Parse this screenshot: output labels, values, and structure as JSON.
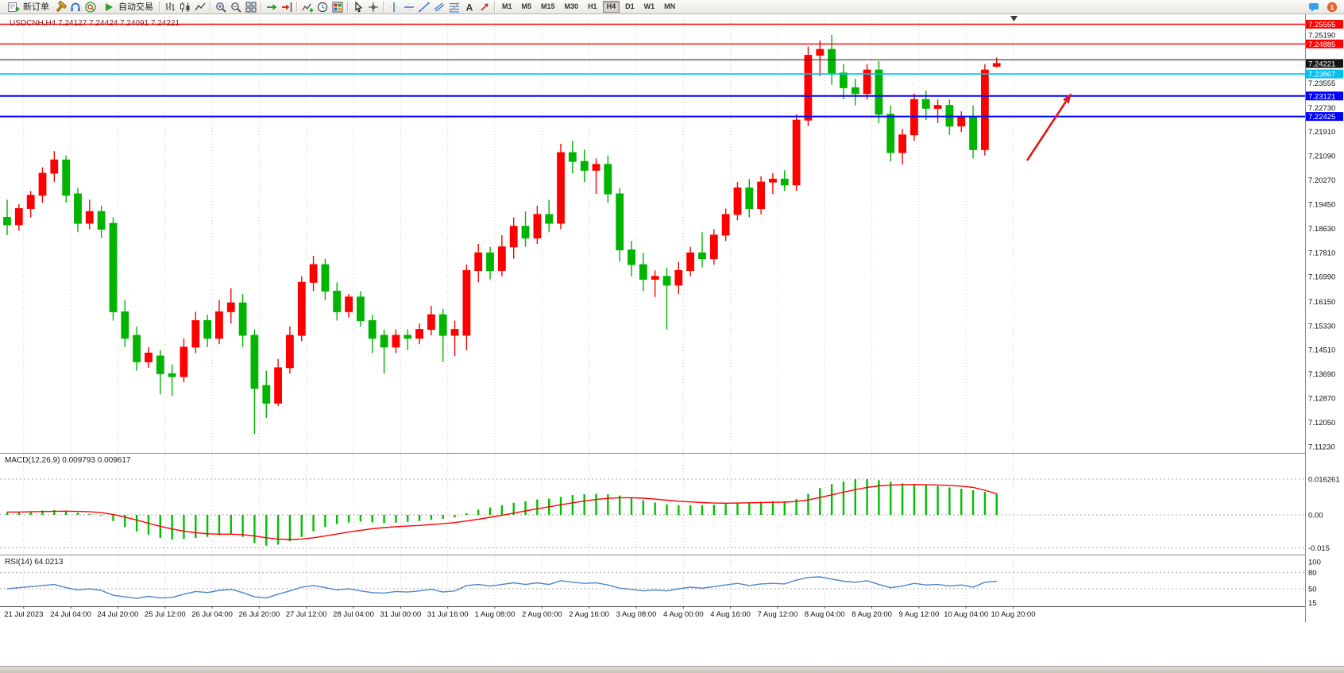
{
  "toolbar": {
    "new_order_label": "新订单",
    "auto_trading_label": "自动交易",
    "sections": [
      {
        "type": "button",
        "name": "new-order-button",
        "icon": "new-order-icon",
        "bind": "toolbar.new_order_label"
      },
      {
        "type": "icons",
        "items": [
          "hammer-icon",
          "headset-icon",
          "community-icon"
        ]
      },
      {
        "type": "button",
        "name": "auto-trading-button",
        "icon": "autotrade-play-icon",
        "bind": "toolbar.auto_trading_label"
      },
      {
        "type": "sep"
      },
      {
        "type": "icons",
        "items": [
          "bar-chart-icon",
          "candlestick-chart-icon",
          "line-chart-icon"
        ]
      },
      {
        "type": "sep"
      },
      {
        "type": "icons",
        "items": [
          "zoom-in-icon",
          "zoom-out-icon",
          "tile-windows-icon"
        ]
      },
      {
        "type": "sep"
      },
      {
        "type": "icons",
        "items": [
          "auto-scroll-icon",
          "chart-shift-icon"
        ]
      },
      {
        "type": "sep"
      },
      {
        "type": "icons",
        "items": [
          "indicators-icon",
          "periods-icon",
          "templates-icon"
        ]
      },
      {
        "type": "sep"
      },
      {
        "type": "icons",
        "items": [
          "cursor-icon",
          "crosshair-icon"
        ]
      },
      {
        "type": "sep"
      },
      {
        "type": "icons",
        "items": [
          "vertical-line-icon",
          "horizontal-line-icon",
          "trendline-icon",
          "channel-icon",
          "fibonacci-icon",
          "text-icon",
          "arrows-icon"
        ]
      },
      {
        "type": "sep"
      },
      {
        "type": "timeframes"
      }
    ],
    "timeframes": [
      "M1",
      "M5",
      "M15",
      "M30",
      "H1",
      "H4",
      "D1",
      "W1",
      "MN"
    ],
    "active_timeframe": "H4",
    "right_icons": [
      "chat-icon",
      "notification-icon"
    ]
  },
  "chart_data": {
    "type": "candlestick",
    "symbol": "USDCNH",
    "timeframe": "H4",
    "title": "USDCNH,H4 7.24127 7.24424 7.24091 7.24221",
    "last_candle_ohlc": {
      "open": 7.24127,
      "high": 7.24424,
      "low": 7.24091,
      "close": 7.24221
    },
    "current_price": "7.24221",
    "colors": {
      "up": "#FF0000",
      "down": "#00B400",
      "macd_hist": "#00C000",
      "macd_signal": "#FF0000",
      "rsi_line": "#4C86C8",
      "grid": "#C9C9C9",
      "background": "#FFFFFF",
      "red_level": "#FF0000",
      "cyan_level": "#00BFEF",
      "blue_level": "#0000FF",
      "black_level": "#2F2F2F"
    },
    "y_grid_labels": [
      "7.25190",
      "7.23555",
      "7.22730",
      "7.21910",
      "7.21090",
      "7.20270",
      "7.19450",
      "7.18630",
      "7.17810",
      "7.16990",
      "7.16150",
      "7.15330",
      "7.14510",
      "7.13690",
      "7.12870",
      "7.12050",
      "7.11230"
    ],
    "price_tags": [
      {
        "text": "7.25555",
        "price": 7.25555,
        "bg": "#FF0000",
        "fg": "#FFFFFF"
      },
      {
        "text": "7.24885",
        "price": 7.24885,
        "bg": "#FF0000",
        "fg": "#FFFFFF"
      },
      {
        "text": "7.24221",
        "price": 7.24221,
        "bg": "#141414",
        "fg": "#FFFFFF"
      },
      {
        "text": "7.23867",
        "price": 7.23867,
        "bg": "#00BFEF",
        "fg": "#FFFFFF"
      },
      {
        "text": "7.23121",
        "price": 7.23121,
        "bg": "#0000FF",
        "fg": "#FFFFFF"
      },
      {
        "text": "7.22425",
        "price": 7.22425,
        "bg": "#0000FF",
        "fg": "#FFFFFF"
      }
    ],
    "hlines": [
      {
        "price": 7.25555,
        "color": "#FF0000",
        "width": 1.4
      },
      {
        "price": 7.24885,
        "color": "#FF0000",
        "width": 1.4
      },
      {
        "price": 7.2435,
        "color": "#2F2F2F",
        "width": 1.2
      },
      {
        "price": 7.23867,
        "color": "#00BFEF",
        "width": 1.6
      },
      {
        "price": 7.23121,
        "color": "#0000FF",
        "width": 2
      },
      {
        "price": 7.22425,
        "color": "#0000FF",
        "width": 2
      }
    ],
    "x_labels": [
      "21 Jul 2023",
      "24 Jul 04:00",
      "24 Jul 20:00",
      "25 Jul 12:00",
      "26 Jul 04:00",
      "26 Jul 20:00",
      "27 Jul 12:00",
      "28 Jul 04:00",
      "31 Jul 00:00",
      "31 Jul 16:00",
      "1 Aug 08:00",
      "2 Aug 00:00",
      "2 Aug 16:00",
      "3 Aug 08:00",
      "4 Aug 00:00",
      "4 Aug 16:00",
      "7 Aug 12:00",
      "8 Aug 04:00",
      "8 Aug 20:00",
      "9 Aug 12:00",
      "10 Aug 04:00",
      "10 Aug 20:00"
    ],
    "candles": [
      [
        7.19,
        7.196,
        7.184,
        7.1875
      ],
      [
        7.1875,
        7.1945,
        7.1855,
        7.193
      ],
      [
        7.193,
        7.199,
        7.19,
        7.1975
      ],
      [
        7.1975,
        7.207,
        7.195,
        7.205
      ],
      [
        7.205,
        7.2125,
        7.202,
        7.2095
      ],
      [
        7.2095,
        7.211,
        7.195,
        7.1975
      ],
      [
        7.198,
        7.2,
        7.185,
        7.188
      ],
      [
        7.188,
        7.196,
        7.186,
        7.192
      ],
      [
        7.192,
        7.194,
        7.183,
        7.186
      ],
      [
        7.188,
        7.19,
        7.155,
        7.158
      ],
      [
        7.158,
        7.162,
        7.146,
        7.149
      ],
      [
        7.15,
        7.153,
        7.138,
        7.141
      ],
      [
        7.141,
        7.146,
        7.139,
        7.144
      ],
      [
        7.143,
        7.145,
        7.13,
        7.137
      ],
      [
        7.137,
        7.14,
        7.1295,
        7.136
      ],
      [
        7.136,
        7.149,
        7.134,
        7.146
      ],
      [
        7.146,
        7.158,
        7.144,
        7.155
      ],
      [
        7.155,
        7.157,
        7.146,
        7.149
      ],
      [
        7.149,
        7.162,
        7.147,
        7.158
      ],
      [
        7.158,
        7.166,
        7.154,
        7.161
      ],
      [
        7.161,
        7.164,
        7.146,
        7.15
      ],
      [
        7.15,
        7.152,
        7.1165,
        7.132
      ],
      [
        7.133,
        7.138,
        7.122,
        7.127
      ],
      [
        7.127,
        7.142,
        7.126,
        7.139
      ],
      [
        7.139,
        7.153,
        7.137,
        7.15
      ],
      [
        7.15,
        7.17,
        7.148,
        7.168
      ],
      [
        7.168,
        7.177,
        7.165,
        7.174
      ],
      [
        7.174,
        7.176,
        7.162,
        7.165
      ],
      [
        7.165,
        7.168,
        7.155,
        7.158
      ],
      [
        7.158,
        7.164,
        7.156,
        7.163
      ],
      [
        7.163,
        7.165,
        7.153,
        7.155
      ],
      [
        7.155,
        7.157,
        7.144,
        7.149
      ],
      [
        7.15,
        7.152,
        7.137,
        7.146
      ],
      [
        7.146,
        7.152,
        7.144,
        7.15
      ],
      [
        7.15,
        7.152,
        7.145,
        7.149
      ],
      [
        7.149,
        7.154,
        7.147,
        7.152
      ],
      [
        7.152,
        7.16,
        7.15,
        7.157
      ],
      [
        7.157,
        7.159,
        7.141,
        7.15
      ],
      [
        7.15,
        7.155,
        7.143,
        7.152
      ],
      [
        7.15,
        7.174,
        7.145,
        7.172
      ],
      [
        7.172,
        7.181,
        7.168,
        7.178
      ],
      [
        7.178,
        7.18,
        7.169,
        7.172
      ],
      [
        7.172,
        7.184,
        7.17,
        7.18
      ],
      [
        7.18,
        7.19,
        7.176,
        7.187
      ],
      [
        7.187,
        7.192,
        7.18,
        7.183
      ],
      [
        7.183,
        7.194,
        7.181,
        7.191
      ],
      [
        7.191,
        7.196,
        7.185,
        7.188
      ],
      [
        7.188,
        7.215,
        7.186,
        7.212
      ],
      [
        7.212,
        7.216,
        7.205,
        7.209
      ],
      [
        7.209,
        7.213,
        7.202,
        7.206
      ],
      [
        7.206,
        7.21,
        7.198,
        7.208
      ],
      [
        7.208,
        7.211,
        7.195,
        7.198
      ],
      [
        7.198,
        7.2,
        7.175,
        7.179
      ],
      [
        7.179,
        7.182,
        7.17,
        7.174
      ],
      [
        7.174,
        7.178,
        7.165,
        7.169
      ],
      [
        7.169,
        7.172,
        7.163,
        7.17
      ],
      [
        7.17,
        7.173,
        7.152,
        7.167
      ],
      [
        7.167,
        7.175,
        7.164,
        7.172
      ],
      [
        7.172,
        7.18,
        7.17,
        7.178
      ],
      [
        7.178,
        7.185,
        7.173,
        7.176
      ],
      [
        7.176,
        7.186,
        7.174,
        7.184
      ],
      [
        7.184,
        7.193,
        7.182,
        7.191
      ],
      [
        7.191,
        7.202,
        7.189,
        7.2
      ],
      [
        7.2,
        7.203,
        7.19,
        7.193
      ],
      [
        7.193,
        7.204,
        7.191,
        7.202
      ],
      [
        7.202,
        7.205,
        7.198,
        7.203
      ],
      [
        7.203,
        7.206,
        7.199,
        7.201
      ],
      [
        7.201,
        7.225,
        7.199,
        7.223
      ],
      [
        7.223,
        7.248,
        7.221,
        7.245
      ],
      [
        7.245,
        7.25,
        7.238,
        7.247
      ],
      [
        7.247,
        7.2519,
        7.235,
        7.239
      ],
      [
        7.239,
        7.242,
        7.23,
        7.234
      ],
      [
        7.234,
        7.237,
        7.228,
        7.232
      ],
      [
        7.232,
        7.242,
        7.23,
        7.24
      ],
      [
        7.24,
        7.243,
        7.222,
        7.225
      ],
      [
        7.225,
        7.228,
        7.209,
        7.212
      ],
      [
        7.212,
        7.22,
        7.208,
        7.218
      ],
      [
        7.218,
        7.232,
        7.216,
        7.23
      ],
      [
        7.23,
        7.233,
        7.223,
        7.227
      ],
      [
        7.227,
        7.23,
        7.222,
        7.228
      ],
      [
        7.228,
        7.23,
        7.218,
        7.221
      ],
      [
        7.221,
        7.226,
        7.219,
        7.224
      ],
      [
        7.224,
        7.228,
        7.21,
        7.213
      ],
      [
        7.213,
        7.242,
        7.211,
        7.24
      ],
      [
        7.24127,
        7.24424,
        7.24091,
        7.24221
      ]
    ],
    "indicators": {
      "macd": {
        "label": "MACD(12,26,9)",
        "value_label": "0.009793 0.009617",
        "axis_labels": [
          {
            "text": "0.016261",
            "value": 0.016261
          },
          {
            "text": "0.00",
            "value": 0
          },
          {
            "text": "-0.015",
            "value": -0.015
          }
        ],
        "histogram": [
          0.0012,
          0.0014,
          0.0016,
          0.002,
          0.0022,
          0.0018,
          0.001,
          0.0004,
          -0.0004,
          -0.0028,
          -0.0055,
          -0.0075,
          -0.009,
          -0.0105,
          -0.0112,
          -0.011,
          -0.0105,
          -0.01,
          -0.0092,
          -0.0085,
          -0.01,
          -0.0128,
          -0.014,
          -0.0135,
          -0.012,
          -0.01,
          -0.0075,
          -0.0055,
          -0.0042,
          -0.0034,
          -0.003,
          -0.0034,
          -0.0038,
          -0.0035,
          -0.0032,
          -0.0028,
          -0.0022,
          -0.0018,
          -0.0012,
          0.0008,
          0.0024,
          0.0034,
          0.0044,
          0.0055,
          0.0062,
          0.007,
          0.0074,
          0.0082,
          0.009,
          0.0094,
          0.0096,
          0.0094,
          0.0088,
          0.0078,
          0.0066,
          0.0056,
          0.0048,
          0.0044,
          0.0044,
          0.0044,
          0.0046,
          0.005,
          0.0056,
          0.0058,
          0.006,
          0.0062,
          0.0062,
          0.0072,
          0.0095,
          0.0122,
          0.014,
          0.0152,
          0.0162,
          0.0163,
          0.0158,
          0.015,
          0.0143,
          0.014,
          0.0136,
          0.0131,
          0.0125,
          0.0119,
          0.0112,
          0.0104,
          0.0098
        ],
        "signal": [
          0.0013,
          0.0013,
          0.0014,
          0.0015,
          0.0016,
          0.0017,
          0.0016,
          0.0014,
          0.001,
          0.0002,
          -0.001,
          -0.0024,
          -0.0038,
          -0.0052,
          -0.0064,
          -0.0074,
          -0.0081,
          -0.0086,
          -0.0088,
          -0.0088,
          -0.009,
          -0.0096,
          -0.0104,
          -0.011,
          -0.0112,
          -0.011,
          -0.0104,
          -0.0096,
          -0.0087,
          -0.0078,
          -0.007,
          -0.0063,
          -0.0058,
          -0.0054,
          -0.0051,
          -0.0048,
          -0.0044,
          -0.004,
          -0.0035,
          -0.0028,
          -0.002,
          -0.0011,
          -0.0002,
          0.0008,
          0.0018,
          0.0028,
          0.0037,
          0.0046,
          0.0055,
          0.0063,
          0.007,
          0.0075,
          0.0078,
          0.0078,
          0.0076,
          0.0072,
          0.0067,
          0.0062,
          0.0059,
          0.0056,
          0.0054,
          0.0053,
          0.0054,
          0.0055,
          0.0056,
          0.0057,
          0.0058,
          0.0061,
          0.0068,
          0.0079,
          0.0091,
          0.0103,
          0.0115,
          0.0125,
          0.0132,
          0.0135,
          0.0137,
          0.0138,
          0.0137,
          0.0136,
          0.0134,
          0.0131,
          0.0125,
          0.0112,
          0.0096
        ]
      },
      "rsi": {
        "label": "RSI(14)",
        "value_label": "64.0213",
        "axis_labels": [
          {
            "text": "100",
            "value": 100
          },
          {
            "text": "80",
            "value": 80
          },
          {
            "text": "50",
            "value": 50
          },
          {
            "text": "15",
            "value": 15
          }
        ],
        "levels": [
          80,
          50
        ],
        "values": [
          50,
          52,
          54,
          56,
          58,
          52,
          48,
          50,
          47,
          38,
          35,
          32,
          36,
          33,
          34,
          40,
          45,
          43,
          47,
          49,
          43,
          35,
          33,
          40,
          46,
          53,
          56,
          52,
          48,
          50,
          46,
          43,
          42,
          45,
          44,
          46,
          49,
          44,
          46,
          56,
          58,
          55,
          58,
          61,
          58,
          61,
          58,
          65,
          62,
          60,
          61,
          57,
          51,
          49,
          46,
          48,
          46,
          50,
          53,
          51,
          54,
          57,
          60,
          56,
          59,
          60,
          59,
          66,
          71,
          72,
          68,
          64,
          62,
          65,
          58,
          52,
          55,
          60,
          57,
          58,
          55,
          57,
          53,
          62,
          64.02
        ]
      }
    },
    "annotations": [
      {
        "type": "arrow",
        "name": "red-up-arrow",
        "from": [
          1293,
          202
        ],
        "to": [
          1349,
          117
        ],
        "color": "#E01818"
      }
    ]
  }
}
